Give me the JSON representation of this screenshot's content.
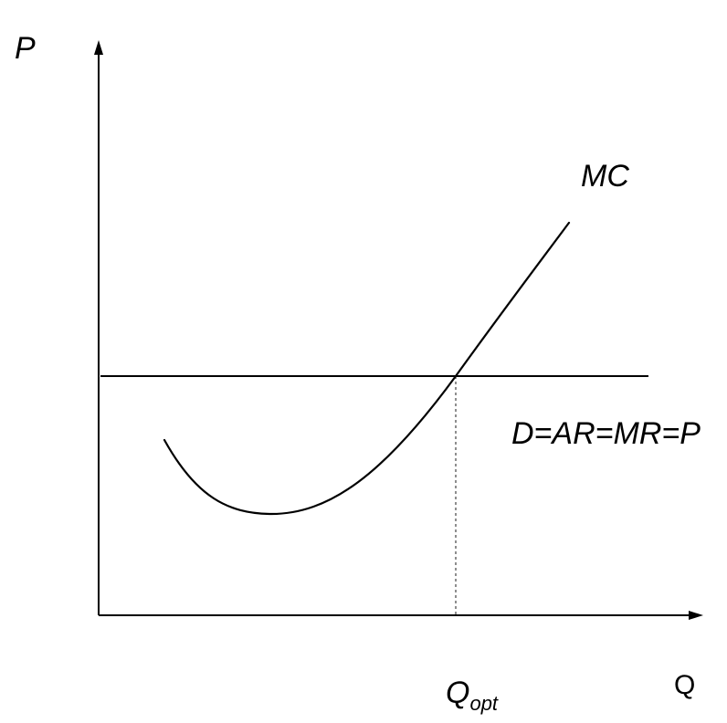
{
  "axes": {
    "y_label": "P",
    "x_label": "Q"
  },
  "curves": {
    "mc_label": "MC",
    "price_line_label": "D=AR=MR=P"
  },
  "equilibrium": {
    "q_main": "Q",
    "q_sub": "opt"
  }
}
